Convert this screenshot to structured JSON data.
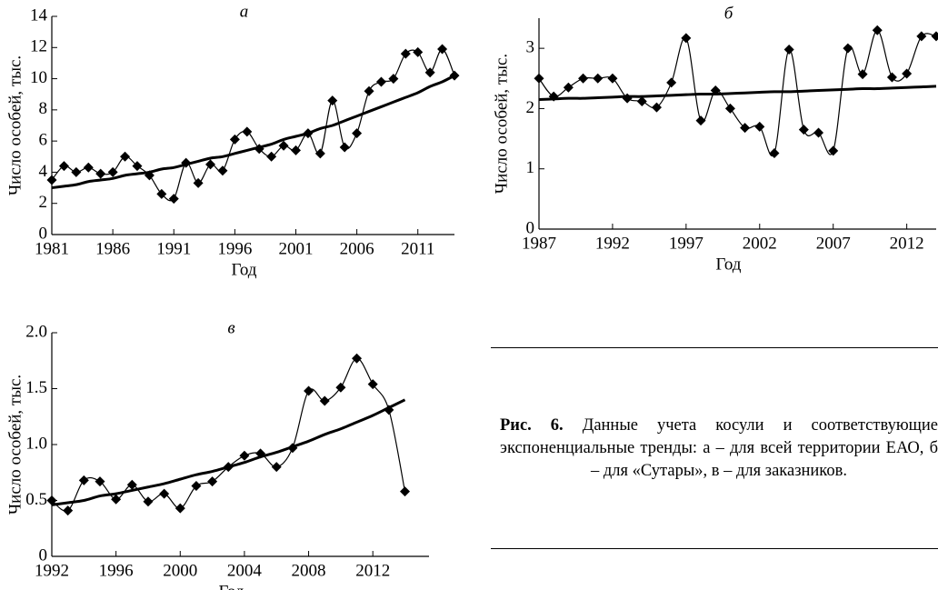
{
  "chart_data": [
    {
      "type": "line",
      "title": "а",
      "xlabel": "Год",
      "ylabel": "Число особей, тыс.",
      "x": [
        1981,
        1982,
        1983,
        1984,
        1985,
        1986,
        1987,
        1988,
        1989,
        1990,
        1991,
        1992,
        1993,
        1994,
        1995,
        1996,
        1997,
        1998,
        1999,
        2000,
        2001,
        2002,
        2003,
        2004,
        2005,
        2006,
        2007,
        2008,
        2009,
        2010,
        2011,
        2012,
        2013,
        2014
      ],
      "series": [
        {
          "color": "#000000",
          "marker": "diamond",
          "values": [
            3.5,
            4.4,
            4.0,
            4.3,
            3.9,
            4.0,
            5.0,
            4.4,
            3.8,
            2.6,
            2.3,
            4.6,
            3.3,
            4.5,
            4.1,
            6.1,
            6.6,
            5.5,
            5.0,
            5.7,
            5.4,
            6.5,
            5.2,
            8.6,
            5.6,
            6.5,
            9.2,
            9.8,
            10.0,
            11.6,
            11.7,
            10.4,
            11.9,
            10.2
          ]
        },
        {
          "color": "#000000",
          "values": [
            3.0,
            3.1,
            3.2,
            3.4,
            3.5,
            3.6,
            3.8,
            3.9,
            4.0,
            4.2,
            4.3,
            4.5,
            4.7,
            4.9,
            5.0,
            5.2,
            5.4,
            5.6,
            5.8,
            6.1,
            6.3,
            6.5,
            6.8,
            7.0,
            7.3,
            7.6,
            7.9,
            8.2,
            8.5,
            8.8,
            9.1,
            9.5,
            9.8,
            10.2
          ]
        }
      ],
      "xlim": [
        1981,
        2014
      ],
      "xticks": [
        1981,
        1986,
        1991,
        1996,
        2001,
        2006,
        2011
      ],
      "ylim": [
        0,
        14
      ],
      "yticks": [
        0,
        2,
        4,
        6,
        8,
        10,
        12,
        14
      ]
    },
    {
      "type": "line",
      "title": "б",
      "xlabel": "Год",
      "ylabel": "Число особей, тыс.",
      "x": [
        1987,
        1988,
        1989,
        1990,
        1991,
        1992,
        1993,
        1994,
        1995,
        1996,
        1997,
        1998,
        1999,
        2000,
        2001,
        2002,
        2003,
        2004,
        2005,
        2006,
        2007,
        2008,
        2009,
        2010,
        2011,
        2012,
        2013,
        2014
      ],
      "series": [
        {
          "color": "#000000",
          "marker": "diamond",
          "values": [
            2.5,
            2.2,
            2.35,
            2.5,
            2.5,
            2.5,
            2.17,
            2.12,
            2.02,
            2.43,
            3.17,
            1.8,
            2.3,
            2.0,
            1.68,
            1.7,
            1.26,
            2.98,
            1.65,
            1.6,
            1.3,
            3.0,
            2.57,
            3.3,
            2.52,
            2.58,
            3.2,
            3.2
          ]
        },
        {
          "color": "#000000",
          "values": [
            2.15,
            2.16,
            2.17,
            2.17,
            2.18,
            2.19,
            2.2,
            2.2,
            2.21,
            2.22,
            2.23,
            2.24,
            2.24,
            2.25,
            2.26,
            2.27,
            2.28,
            2.28,
            2.29,
            2.3,
            2.31,
            2.32,
            2.33,
            2.33,
            2.34,
            2.35,
            2.36,
            2.37
          ]
        }
      ],
      "xlim": [
        1987,
        2014
      ],
      "xticks": [
        1987,
        1992,
        1997,
        2002,
        2007,
        2012
      ],
      "ylim": [
        0,
        3.5
      ],
      "yticks": [
        0,
        1,
        2,
        3
      ]
    },
    {
      "type": "line",
      "title": "в",
      "xlabel": "Год",
      "ylabel": "Число особей, тыс.",
      "x": [
        1992,
        1993,
        1994,
        1995,
        1996,
        1997,
        1998,
        1999,
        2000,
        2001,
        2002,
        2003,
        2004,
        2005,
        2006,
        2007,
        2008,
        2009,
        2010,
        2011,
        2012,
        2013,
        2014
      ],
      "series": [
        {
          "color": "#000000",
          "marker": "diamond",
          "values": [
            0.5,
            0.41,
            0.68,
            0.67,
            0.51,
            0.64,
            0.49,
            0.56,
            0.43,
            0.63,
            0.67,
            0.8,
            0.9,
            0.92,
            0.8,
            0.97,
            1.48,
            1.39,
            1.51,
            1.77,
            1.54,
            1.31,
            0.58
          ]
        },
        {
          "color": "#000000",
          "values": [
            0.46,
            0.48,
            0.5,
            0.54,
            0.56,
            0.59,
            0.62,
            0.65,
            0.69,
            0.73,
            0.76,
            0.8,
            0.84,
            0.89,
            0.93,
            0.98,
            1.03,
            1.09,
            1.14,
            1.2,
            1.26,
            1.33,
            1.4
          ]
        }
      ],
      "xlim": [
        1992,
        2015.5
      ],
      "xticks": [
        1992,
        1996,
        2000,
        2004,
        2008,
        2012
      ],
      "ylim": [
        0,
        2
      ],
      "yticks": [
        0,
        {
          "value": 0.5,
          "label": "0.5"
        },
        {
          "value": 1,
          "label": "1.0"
        },
        {
          "value": 1.5,
          "label": "1.5"
        },
        {
          "value": 2,
          "label": "2.0"
        }
      ]
    }
  ],
  "caption": {
    "label": "Рис. 6.",
    "text": "Данные учета косули и соответствующие экспоненциальные тренды: а – для всей территории ЕАО, б – для «Сутары», в – для заказников."
  }
}
